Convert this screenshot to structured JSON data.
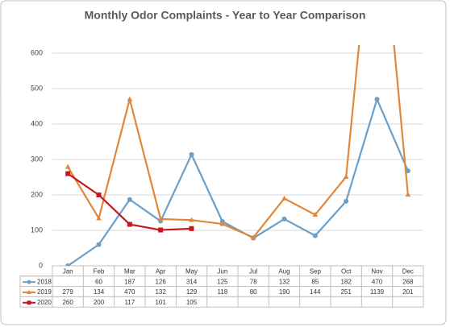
{
  "chart_data": {
    "type": "line",
    "title": "Monthly Odor Complaints - Year to Year Comparison",
    "categories": [
      "Jan",
      "Feb",
      "Mar",
      "Apr",
      "May",
      "Jun",
      "Jul",
      "Aug",
      "Sep",
      "Oct",
      "Nov",
      "Dec"
    ],
    "series": [
      {
        "name": "2018",
        "color": "#6a9fc8",
        "marker": "circle",
        "values": [
          0,
          60,
          187,
          126,
          314,
          125,
          78,
          132,
          85,
          182,
          470,
          268
        ],
        "value_labels": [
          null,
          "60",
          "187",
          "126",
          "314",
          "125",
          "78",
          "132",
          "85",
          "182",
          "470",
          "268"
        ]
      },
      {
        "name": "2019",
        "color": "#e0873a",
        "marker": "triangle",
        "values": [
          279,
          134,
          470,
          132,
          129,
          118,
          80,
          190,
          144,
          251,
          1139,
          201
        ]
      },
      {
        "name": "2020",
        "color": "#c8161d",
        "marker": "square",
        "values": [
          260,
          200,
          117,
          101,
          105,
          null,
          null,
          null,
          null,
          null,
          null,
          null
        ]
      }
    ],
    "ylim": [
      0,
      600
    ],
    "yticks": [
      0,
      100,
      200,
      300,
      400,
      500,
      600
    ],
    "grid": true
  }
}
